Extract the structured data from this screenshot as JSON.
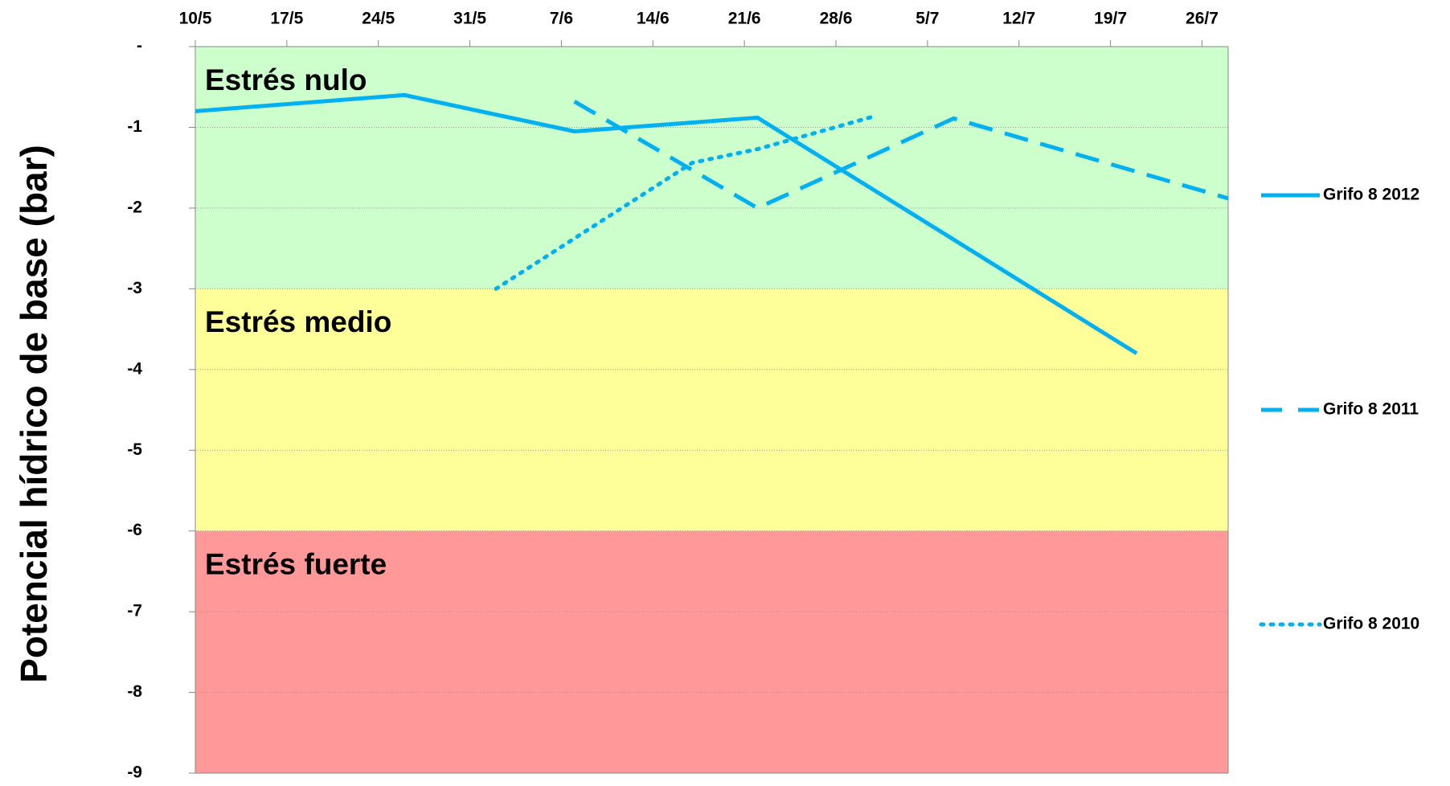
{
  "chart_data": {
    "type": "line",
    "y_label": "Potencial hídrico de base (bar)",
    "xticks": [
      "10/5",
      "17/5",
      "24/5",
      "31/5",
      "7/6",
      "14/6",
      "21/6",
      "28/6",
      "5/7",
      "12/7",
      "19/7",
      "26/7"
    ],
    "xlim": [
      "10/5",
      "28/7"
    ],
    "ylim": [
      -9,
      0
    ],
    "yticks": [
      {
        "value": 0,
        "label": "-"
      },
      -1,
      -2,
      -3,
      -4,
      -5,
      -6,
      -7,
      -8,
      -9
    ],
    "grid": true,
    "legend": "right",
    "bands": [
      {
        "label": "Estrés nulo",
        "from": 0,
        "to": -3,
        "color": "#ccffcc"
      },
      {
        "label": "Estrés medio",
        "from": -3,
        "to": -6,
        "color": "#ffff99"
      },
      {
        "label": "Estrés fuerte",
        "from": -6,
        "to": -9,
        "color": "#ff9999"
      }
    ],
    "series": [
      {
        "name": "Grifo 8 2012",
        "color": "#00b0f0",
        "line_style": "solid",
        "x": [
          "10/5",
          "26/5",
          "8/6",
          "22/6",
          "21/7"
        ],
        "values": [
          -0.8,
          -0.6,
          -1.05,
          -0.88,
          -3.8
        ]
      },
      {
        "name": "Grifo 8 2011",
        "color": "#00b0f0",
        "line_style": "dashed",
        "x": [
          "8/6",
          "22/6",
          "7/7",
          "28/7"
        ],
        "values": [
          -0.68,
          -2.0,
          -0.89,
          -1.88
        ]
      },
      {
        "name": "Grifo 8 2010",
        "color": "#00b0f0",
        "line_style": "dotted",
        "x": [
          "2/6",
          "17/6",
          "22/6",
          "1/7"
        ],
        "values": [
          -3.0,
          -1.44,
          -1.27,
          -0.86
        ]
      }
    ]
  }
}
